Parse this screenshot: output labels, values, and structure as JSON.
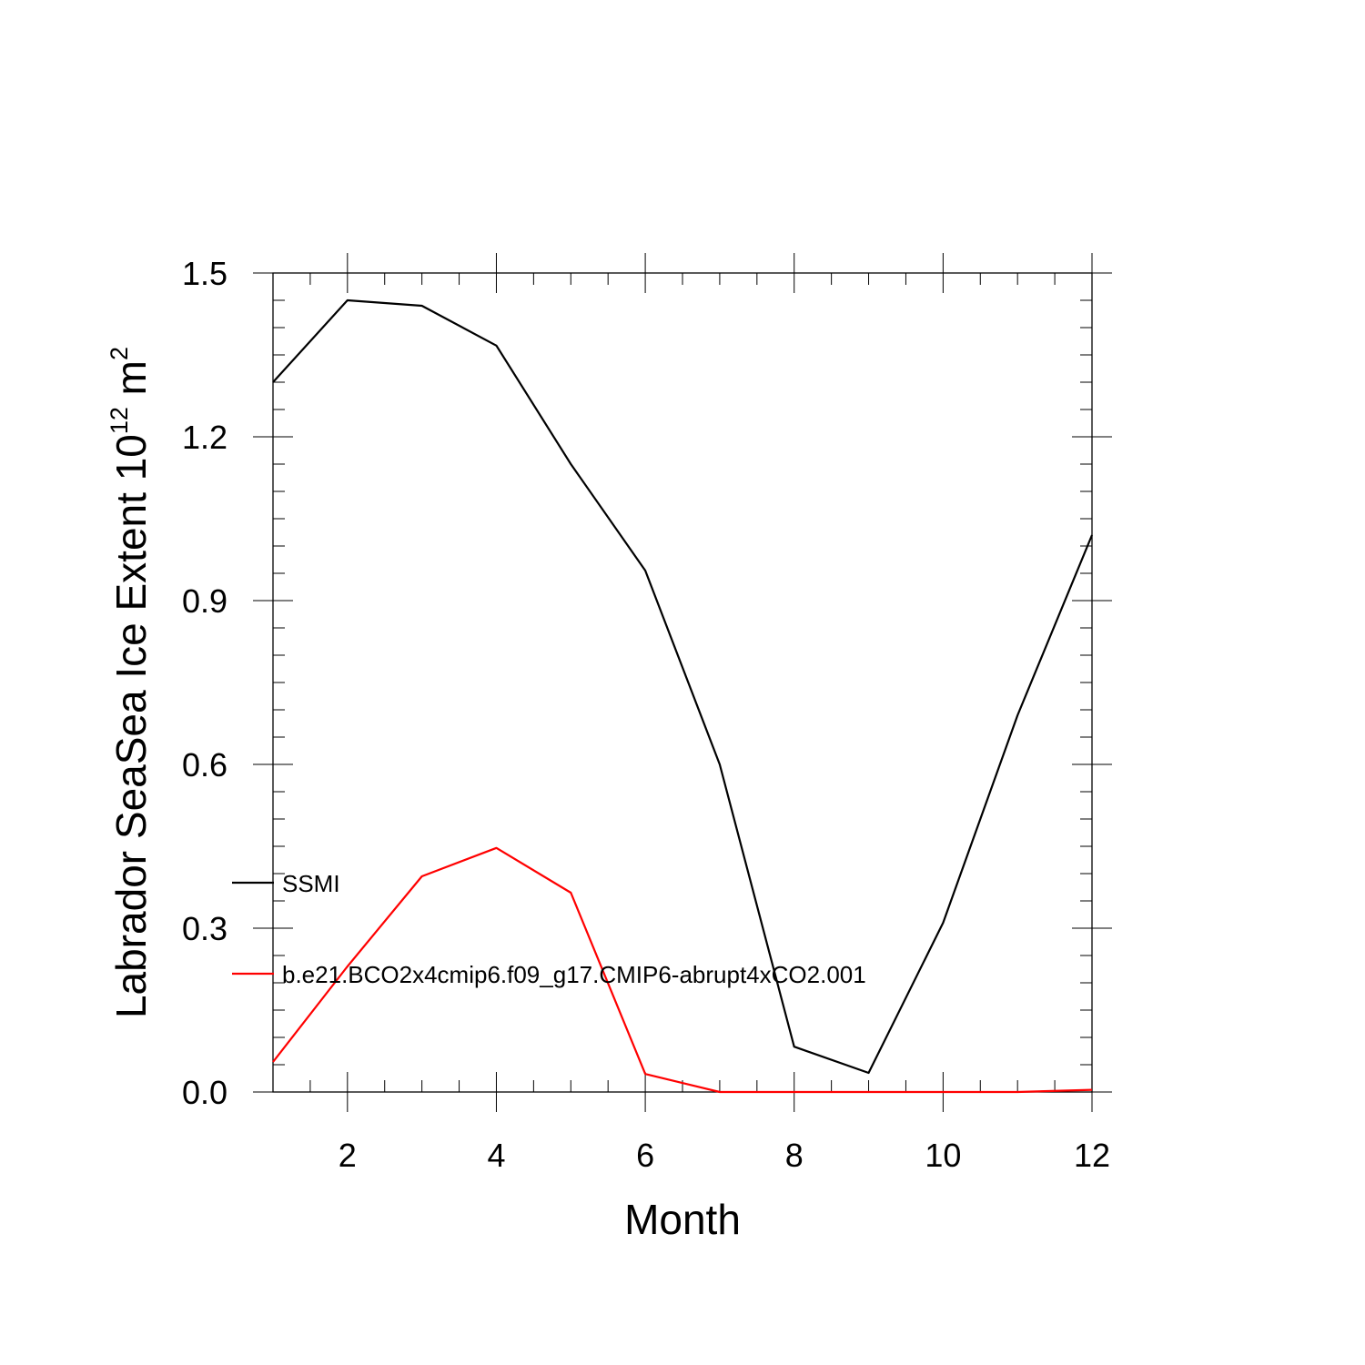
{
  "chart_data": {
    "type": "line",
    "xlabel": "Month",
    "ylabel": {
      "prefix": "Labrador SeaSea Ice Extent 10",
      "exponent": "12",
      "unit": " m",
      "unit_exponent": "2"
    },
    "xlim": [
      1,
      12
    ],
    "ylim": [
      0,
      1.5
    ],
    "x_ticks": [
      2,
      4,
      6,
      8,
      10,
      12
    ],
    "x_tick_labels": [
      "2",
      "4",
      "6",
      "8",
      "10",
      "12"
    ],
    "y_ticks": [
      0,
      0.3,
      0.6,
      0.9,
      1.2,
      1.5
    ],
    "y_tick_labels": [
      "0.0",
      "0.3",
      "0.6",
      "0.9",
      "1.2",
      "1.5"
    ],
    "x": [
      1,
      2,
      3,
      4,
      5,
      6,
      7,
      8,
      9,
      10,
      11,
      12
    ],
    "series": [
      {
        "name": "SSMI",
        "color": "#000000",
        "values": [
          1.3,
          1.45,
          1.44,
          1.367,
          1.15,
          0.955,
          0.6,
          0.083,
          0.035,
          0.31,
          0.69,
          1.02
        ]
      },
      {
        "name": "b.e21.BCO2x4cmip6.f09_g17.CMIP6-abrupt4xCO2.001",
        "color": "#ff0000",
        "values": [
          0.055,
          0.23,
          0.395,
          0.447,
          0.365,
          0.033,
          0.0,
          0.0,
          0.0,
          0.0,
          0.0,
          0.004
        ]
      }
    ],
    "legend_placement": "inside-left"
  }
}
